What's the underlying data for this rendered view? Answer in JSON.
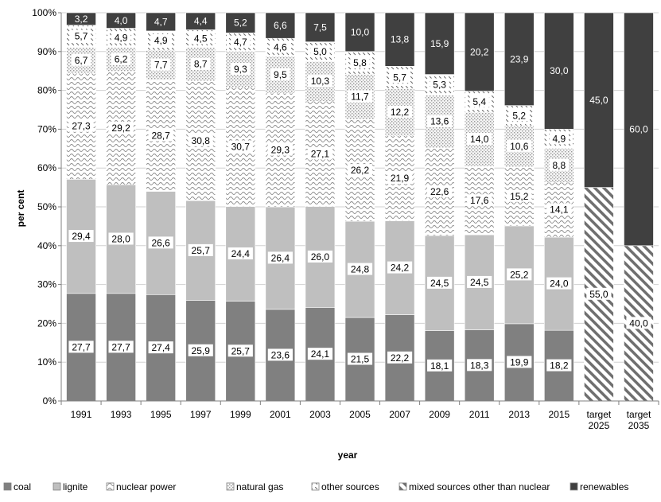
{
  "chart_data": {
    "type": "bar",
    "stacked": true,
    "xlabel": "year",
    "ylabel": "per cent",
    "ylim": [
      0,
      100
    ],
    "yticks": [
      "0%",
      "10%",
      "20%",
      "30%",
      "40%",
      "50%",
      "60%",
      "70%",
      "80%",
      "90%",
      "100%"
    ],
    "categories": [
      [
        "1991"
      ],
      [
        "1993"
      ],
      [
        "1995"
      ],
      [
        "1997"
      ],
      [
        "1999"
      ],
      [
        "2001"
      ],
      [
        "2003"
      ],
      [
        "2005"
      ],
      [
        "2007"
      ],
      [
        "2009"
      ],
      [
        "2011"
      ],
      [
        "2013"
      ],
      [
        "2015"
      ],
      [
        "target",
        "2025"
      ],
      [
        "target",
        "2035"
      ]
    ],
    "legend_position": "bottom",
    "series": [
      {
        "name": "coal",
        "color": "#808080",
        "pattern": "solid",
        "values": [
          27.7,
          27.7,
          27.4,
          25.9,
          25.7,
          23.6,
          24.1,
          21.5,
          22.2,
          18.1,
          18.3,
          19.9,
          18.2,
          null,
          null
        ],
        "labels": [
          "27,7",
          "27,7",
          "27,4",
          "25,9",
          "25,7",
          "23,6",
          "24,1",
          "21,5",
          "22,2",
          "18,1",
          "18,3",
          "19,9",
          "18,2",
          "",
          ""
        ]
      },
      {
        "name": "lignite",
        "color": "#bfbfbf",
        "pattern": "solid",
        "values": [
          29.4,
          28.0,
          26.6,
          25.7,
          24.4,
          26.4,
          26.0,
          24.8,
          24.2,
          24.5,
          24.5,
          25.2,
          24.0,
          null,
          null
        ],
        "labels": [
          "29,4",
          "28,0",
          "26,6",
          "25,7",
          "24,4",
          "26,4",
          "26,0",
          "24,8",
          "24,2",
          "24,5",
          "24,5",
          "25,2",
          "24,0",
          "",
          ""
        ]
      },
      {
        "name": "nuclear power",
        "color": "#ffffff",
        "pattern": "wave",
        "values": [
          27.3,
          29.2,
          28.7,
          30.8,
          30.7,
          29.3,
          27.1,
          26.2,
          21.9,
          22.6,
          17.6,
          15.2,
          14.1,
          null,
          null
        ],
        "labels": [
          "27,3",
          "29,2",
          "28,7",
          "30,8",
          "30,7",
          "29,3",
          "27,1",
          "26,2",
          "21,9",
          "22,6",
          "17,6",
          "15,2",
          "14,1",
          "",
          ""
        ]
      },
      {
        "name": "natural gas",
        "color": "#e6e6e6",
        "pattern": "dots",
        "values": [
          6.7,
          6.2,
          7.7,
          8.7,
          9.3,
          9.5,
          10.3,
          11.7,
          12.2,
          13.6,
          14.0,
          10.6,
          8.8,
          null,
          null
        ],
        "labels": [
          "6,7",
          "6,2",
          "7,7",
          "8,7",
          "9,3",
          "9,5",
          "10,3",
          "11,7",
          "12,2",
          "13,6",
          "14,0",
          "10,6",
          "8,8",
          "",
          ""
        ]
      },
      {
        "name": "other sources",
        "color": "#ffffff",
        "pattern": "dash",
        "values": [
          5.7,
          4.9,
          4.9,
          4.5,
          4.7,
          4.6,
          5.0,
          5.8,
          5.7,
          5.3,
          5.4,
          5.2,
          4.9,
          null,
          null
        ],
        "labels": [
          "5,7",
          "4,9",
          "4,9",
          "4,5",
          "4,7",
          "4,6",
          "5,0",
          "5,8",
          "5,7",
          "5,3",
          "5,4",
          "5,2",
          "4,9",
          "",
          ""
        ]
      },
      {
        "name": "mixed sources other than nuclear",
        "color": "#ffffff",
        "pattern": "diag",
        "values": [
          null,
          null,
          null,
          null,
          null,
          null,
          null,
          null,
          null,
          null,
          null,
          null,
          null,
          55.0,
          40.0
        ],
        "labels": [
          "",
          "",
          "",
          "",
          "",
          "",
          "",
          "",
          "",
          "",
          "",
          "",
          "",
          "55,0",
          "40,0"
        ]
      },
      {
        "name": "renewables",
        "color": "#404040",
        "pattern": "solid",
        "values": [
          3.2,
          4.0,
          4.7,
          4.4,
          5.2,
          6.6,
          7.5,
          10.0,
          13.8,
          15.9,
          20.2,
          23.9,
          30.0,
          45.0,
          60.0
        ],
        "labels": [
          "3,2",
          "4,0",
          "4,7",
          "4,4",
          "5,2",
          "6,6",
          "7,5",
          "10,0",
          "13,8",
          "15,9",
          "20,2",
          "23,9",
          "30,0",
          "45,0",
          "60,0"
        ]
      }
    ]
  }
}
